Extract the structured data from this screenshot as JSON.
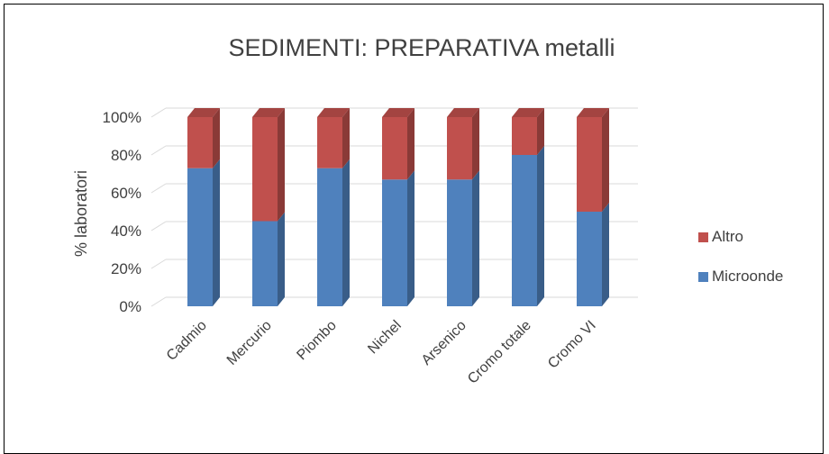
{
  "chart_data": {
    "type": "bar",
    "stacked": true,
    "three_d": true,
    "title": "SEDIMENTI: PREPARATIVA metalli",
    "xlabel": "",
    "ylabel": "% laboratori",
    "ylim": [
      0,
      100
    ],
    "y_ticks": [
      "0%",
      "20%",
      "40%",
      "60%",
      "80%",
      "100%"
    ],
    "y_tick_values": [
      0,
      20,
      40,
      60,
      80,
      100
    ],
    "grid": true,
    "legend_position": "right",
    "categories": [
      "Cadmio",
      "Mercurio",
      "Piombo",
      "Nichel",
      "Arsenico",
      "Cromo totale",
      "Cromo VI"
    ],
    "series": [
      {
        "name": "Microonde",
        "values": [
          73,
          45,
          73,
          67,
          67,
          80,
          50
        ],
        "color": "#4f81bd"
      },
      {
        "name": "Altro",
        "values": [
          27,
          55,
          27,
          33,
          33,
          20,
          50
        ],
        "color": "#c0504d"
      }
    ],
    "legend_order": [
      "Altro",
      "Microonde"
    ]
  }
}
